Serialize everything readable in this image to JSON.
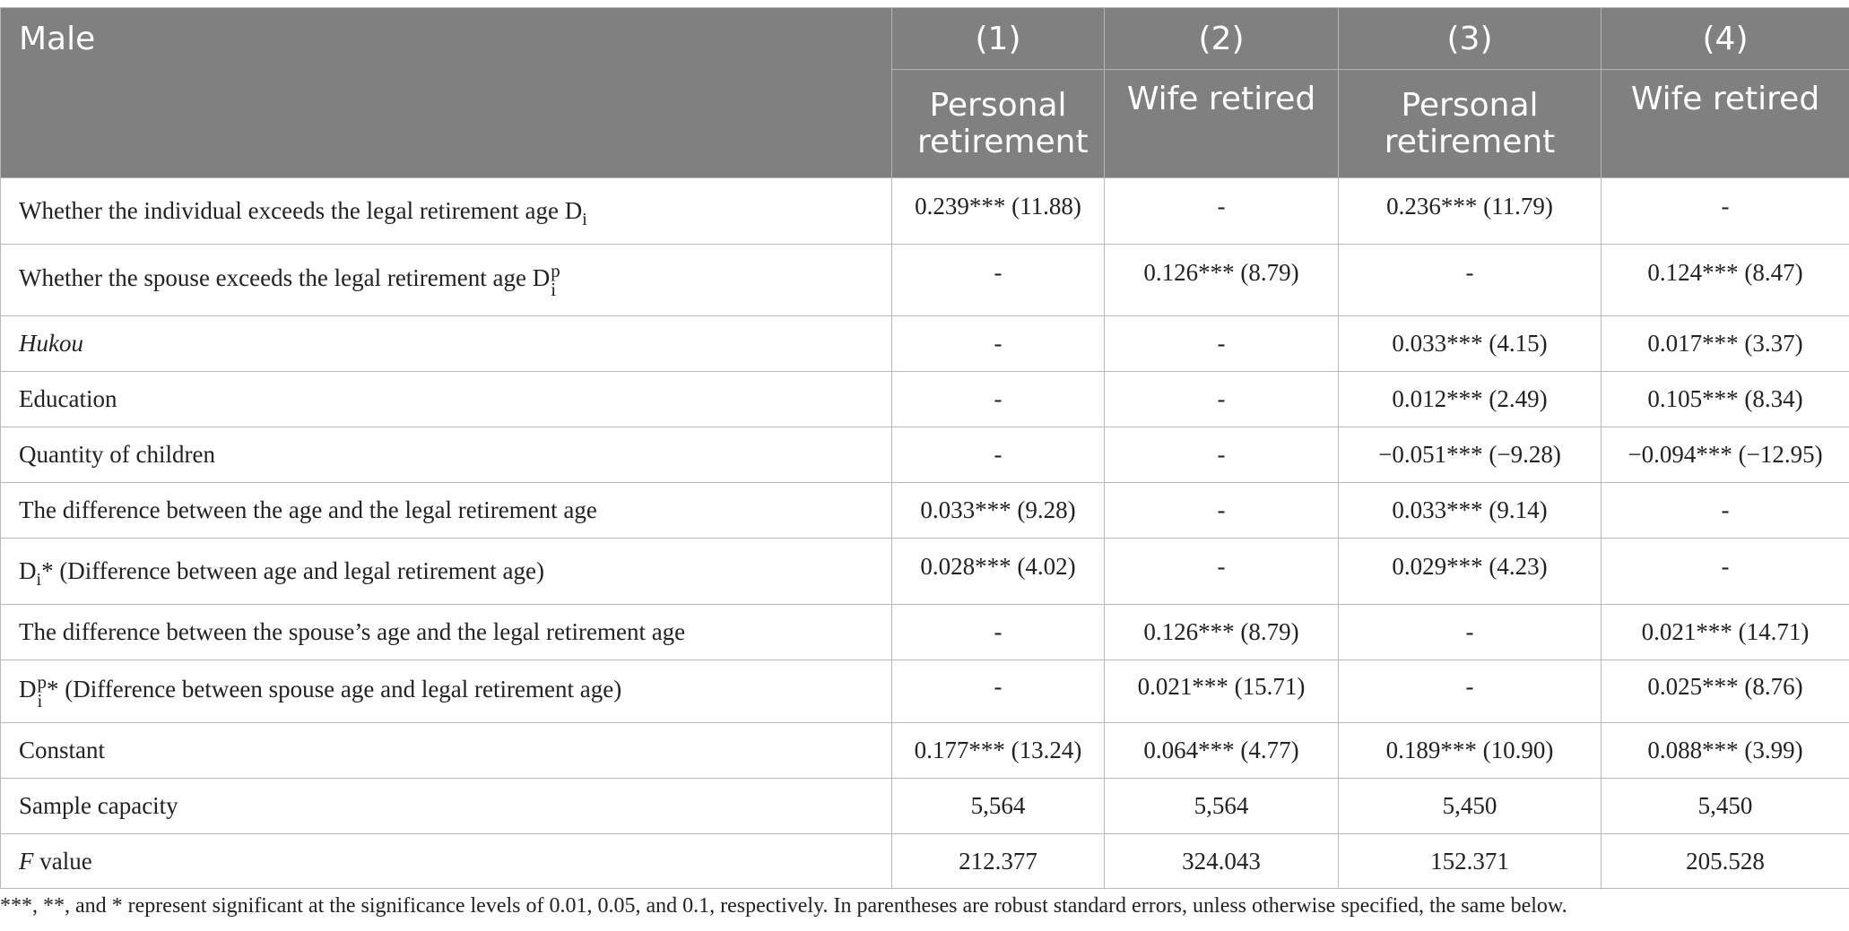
{
  "header": {
    "stub": "Male",
    "columns": [
      {
        "num": "(1)",
        "label": "Personal retirement"
      },
      {
        "num": "(2)",
        "label": "Wife retired"
      },
      {
        "num": "(3)",
        "label": "Personal retirement"
      },
      {
        "num": "(4)",
        "label": "Wife retired"
      }
    ]
  },
  "rows": [
    {
      "label": "Whether the individual exceeds the legal retirement age D",
      "sub": "i",
      "cells": [
        "0.239*** (11.88)",
        "-",
        "0.236*** (11.79)",
        "-"
      ]
    },
    {
      "label": "Whether the spouse exceeds the legal retirement age D",
      "sub": "i",
      "sup": "p",
      "cells": [
        "-",
        "0.126*** (8.79)",
        "-",
        "0.124*** (8.47)"
      ]
    },
    {
      "label": "Hukou",
      "cells": [
        "-",
        "-",
        "0.033*** (4.15)",
        "0.017*** (3.37)"
      ]
    },
    {
      "label": "Education",
      "cells": [
        "-",
        "-",
        "0.012*** (2.49)",
        "0.105*** (8.34)"
      ]
    },
    {
      "label": "Quantity of children",
      "cells": [
        "-",
        "-",
        "−0.051*** (−9.28)",
        "−0.094*** (−12.95)"
      ]
    },
    {
      "label": "The difference between the age and the legal retirement age",
      "cells": [
        "0.033*** (9.28)",
        "-",
        "0.033*** (9.14)",
        "-"
      ]
    },
    {
      "label": "D",
      "sub": "i",
      "tail": "* (Difference between age and legal retirement age)",
      "cells": [
        "0.028*** (4.02)",
        "-",
        "0.029*** (4.23)",
        "-"
      ]
    },
    {
      "label": "The difference between the spouse’s age and the legal retirement age",
      "cells": [
        "-",
        "0.126*** (8.79)",
        "-",
        "0.021*** (14.71)"
      ]
    },
    {
      "label": "D",
      "sub": "i",
      "sup": "p",
      "tail": "* (Difference between spouse age and legal retirement age)",
      "cells": [
        "-",
        "0.021*** (15.71)",
        "-",
        "0.025*** (8.76)"
      ]
    },
    {
      "label": "Constant",
      "cells": [
        "0.177*** (13.24)",
        "0.064*** (4.77)",
        "0.189*** (10.90)",
        "0.088*** (3.99)"
      ]
    },
    {
      "label": "Sample capacity",
      "cells": [
        "5,564",
        "5,564",
        "5,450",
        "5,450"
      ]
    },
    {
      "label": "F",
      "tail": " value",
      "cells": [
        "212.377",
        "324.043",
        "152.371",
        "205.528"
      ]
    }
  ],
  "footnote": "***, **, and * represent significant at the significance levels of 0.01, 0.05, and 0.1, respectively. In parentheses are robust standard errors, unless otherwise specified, the same below."
}
